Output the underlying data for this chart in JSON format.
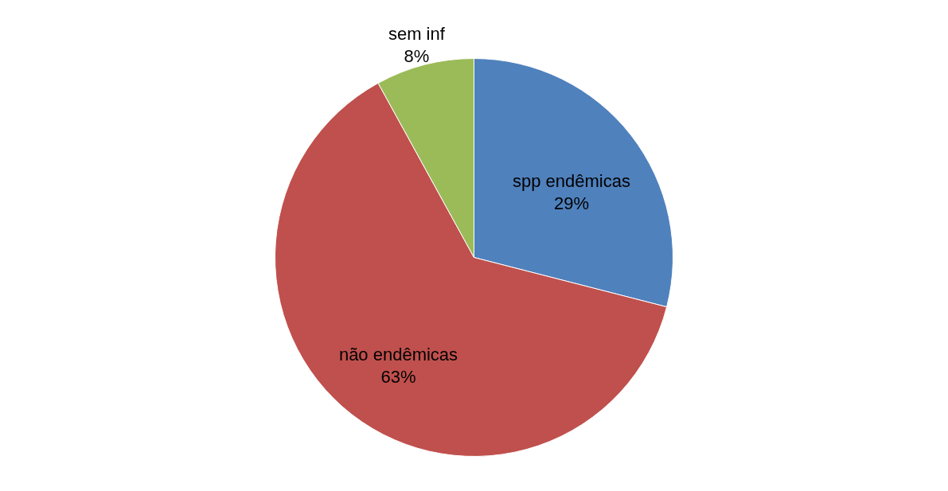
{
  "chart_data": {
    "type": "pie",
    "categories": [
      "spp endêmicas",
      "não endêmicas",
      "sem inf"
    ],
    "values": [
      29,
      63,
      8
    ],
    "value_labels": [
      "29%",
      "63%",
      "8%"
    ],
    "colors": [
      "#4f81bd",
      "#c0504d",
      "#9bbb59"
    ],
    "legend": false
  }
}
